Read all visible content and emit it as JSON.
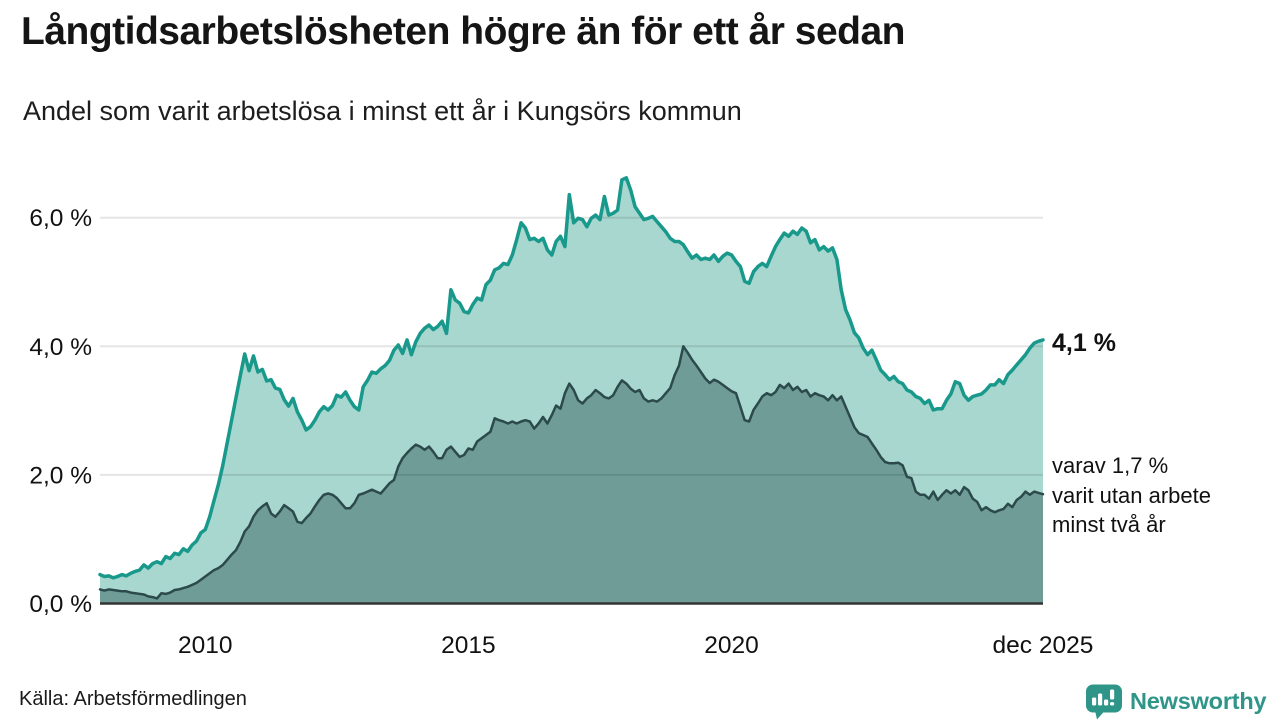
{
  "header": {
    "title": "Långtidsarbetslösheten högre än för ett år sedan",
    "subtitle": "Andel som varit arbetslösa i minst ett år i Kungsörs kommun"
  },
  "annotations": {
    "latest_value_label": "4,1 %",
    "note_lines": [
      "varav 1,7 %",
      "varit utan arbete",
      "minst två år"
    ]
  },
  "footer": {
    "source": "Källa: Arbetsförmedlingen",
    "brand": "Newsworthy"
  },
  "chart_data": {
    "type": "area",
    "title": "Långtidsarbetslösheten högre än för ett år sedan",
    "subtitle": "Andel som varit arbetslösa i minst ett år i Kungsörs kommun",
    "x": {
      "start_year": 2008,
      "frequency": "monthly",
      "end_label": "dec 2025"
    },
    "ylim": [
      0,
      6.9
    ],
    "grid": true,
    "y_ticks": [
      {
        "label": "0,0 %",
        "value": 0
      },
      {
        "label": "2,0 %",
        "value": 2
      },
      {
        "label": "4,0 %",
        "value": 4
      },
      {
        "label": "6,0 %",
        "value": 6
      }
    ],
    "x_ticks": [
      {
        "label": "2010",
        "year": 2010
      },
      {
        "label": "2015",
        "year": 2015
      },
      {
        "label": "2020",
        "year": 2020
      },
      {
        "label": "dec 2025",
        "year": 2025.9167
      }
    ],
    "colors": {
      "grid": "rgba(0,0,0,0.10)",
      "baseline": "#333333"
    },
    "series": [
      {
        "name": "arbetslosa-minst-ett-ar",
        "line_color": "#18998b",
        "fill_color": "#a8d7cf",
        "end_value": 4.1,
        "values": [
          0.45,
          0.42,
          0.43,
          0.4,
          0.42,
          0.45,
          0.43,
          0.47,
          0.5,
          0.52,
          0.6,
          0.55,
          0.62,
          0.65,
          0.62,
          0.73,
          0.7,
          0.78,
          0.76,
          0.85,
          0.81,
          0.91,
          0.97,
          1.1,
          1.15,
          1.35,
          1.6,
          1.85,
          2.15,
          2.5,
          2.85,
          3.2,
          3.55,
          3.88,
          3.62,
          3.85,
          3.6,
          3.64,
          3.46,
          3.48,
          3.35,
          3.33,
          3.17,
          3.07,
          3.19,
          2.98,
          2.85,
          2.7,
          2.75,
          2.85,
          2.98,
          3.06,
          3.01,
          3.08,
          3.24,
          3.21,
          3.29,
          3.16,
          3.06,
          3.01,
          3.37,
          3.47,
          3.6,
          3.58,
          3.65,
          3.7,
          3.78,
          3.94,
          4.02,
          3.89,
          4.1,
          3.87,
          4.07,
          4.2,
          4.28,
          4.33,
          4.26,
          4.31,
          4.39,
          4.2,
          4.88,
          4.72,
          4.67,
          4.54,
          4.52,
          4.65,
          4.75,
          4.72,
          4.96,
          5.03,
          5.19,
          5.22,
          5.29,
          5.27,
          5.42,
          5.66,
          5.92,
          5.84,
          5.66,
          5.68,
          5.63,
          5.68,
          5.5,
          5.42,
          5.63,
          5.71,
          5.55,
          6.36,
          5.92,
          5.99,
          5.97,
          5.86,
          5.99,
          6.04,
          5.97,
          6.33,
          6.04,
          6.07,
          6.12,
          6.59,
          6.62,
          6.43,
          6.17,
          6.07,
          5.97,
          5.99,
          6.02,
          5.94,
          5.86,
          5.78,
          5.68,
          5.63,
          5.63,
          5.58,
          5.47,
          5.37,
          5.42,
          5.35,
          5.37,
          5.35,
          5.42,
          5.32,
          5.4,
          5.45,
          5.42,
          5.32,
          5.24,
          5.01,
          4.98,
          5.16,
          5.24,
          5.29,
          5.24,
          5.4,
          5.55,
          5.66,
          5.76,
          5.71,
          5.79,
          5.74,
          5.84,
          5.79,
          5.61,
          5.66,
          5.5,
          5.55,
          5.48,
          5.53,
          5.35,
          4.88,
          4.57,
          4.41,
          4.21,
          4.13,
          3.97,
          3.87,
          3.94,
          3.79,
          3.63,
          3.56,
          3.48,
          3.53,
          3.45,
          3.42,
          3.32,
          3.29,
          3.22,
          3.19,
          3.11,
          3.16,
          3.01,
          3.03,
          3.03,
          3.16,
          3.26,
          3.45,
          3.42,
          3.24,
          3.16,
          3.22,
          3.24,
          3.26,
          3.32,
          3.4,
          3.4,
          3.48,
          3.42,
          3.56,
          3.63,
          3.71,
          3.79,
          3.87,
          3.97,
          4.05,
          4.08,
          4.1
        ]
      },
      {
        "name": "arbetslosa-minst-tva-ar",
        "line_color": "#2c4a4b",
        "fill_color": "#6f9c96",
        "end_value": 1.7,
        "values": [
          0.22,
          0.2,
          0.22,
          0.21,
          0.2,
          0.19,
          0.19,
          0.17,
          0.16,
          0.15,
          0.14,
          0.11,
          0.1,
          0.08,
          0.16,
          0.15,
          0.17,
          0.21,
          0.22,
          0.24,
          0.26,
          0.29,
          0.32,
          0.37,
          0.42,
          0.47,
          0.52,
          0.55,
          0.6,
          0.68,
          0.76,
          0.83,
          0.96,
          1.12,
          1.2,
          1.35,
          1.45,
          1.51,
          1.56,
          1.4,
          1.35,
          1.43,
          1.53,
          1.48,
          1.43,
          1.27,
          1.25,
          1.33,
          1.4,
          1.51,
          1.61,
          1.69,
          1.71,
          1.69,
          1.64,
          1.56,
          1.48,
          1.48,
          1.56,
          1.69,
          1.71,
          1.74,
          1.77,
          1.74,
          1.71,
          1.79,
          1.87,
          1.92,
          2.13,
          2.26,
          2.34,
          2.41,
          2.47,
          2.44,
          2.39,
          2.44,
          2.36,
          2.26,
          2.26,
          2.39,
          2.44,
          2.36,
          2.28,
          2.31,
          2.41,
          2.39,
          2.52,
          2.57,
          2.62,
          2.67,
          2.88,
          2.85,
          2.83,
          2.8,
          2.83,
          2.8,
          2.83,
          2.85,
          2.83,
          2.72,
          2.8,
          2.9,
          2.8,
          2.93,
          3.08,
          3.03,
          3.27,
          3.42,
          3.32,
          3.16,
          3.11,
          3.19,
          3.24,
          3.32,
          3.27,
          3.21,
          3.19,
          3.24,
          3.37,
          3.47,
          3.42,
          3.34,
          3.29,
          3.32,
          3.19,
          3.14,
          3.16,
          3.14,
          3.19,
          3.27,
          3.35,
          3.55,
          3.7,
          4.0,
          3.9,
          3.79,
          3.7,
          3.6,
          3.5,
          3.43,
          3.48,
          3.45,
          3.4,
          3.35,
          3.3,
          3.27,
          3.06,
          2.85,
          2.83,
          3.01,
          3.11,
          3.22,
          3.27,
          3.24,
          3.29,
          3.4,
          3.35,
          3.42,
          3.32,
          3.37,
          3.29,
          3.32,
          3.22,
          3.27,
          3.24,
          3.22,
          3.16,
          3.24,
          3.16,
          3.22,
          3.06,
          2.9,
          2.74,
          2.65,
          2.62,
          2.59,
          2.49,
          2.39,
          2.28,
          2.2,
          2.18,
          2.18,
          2.19,
          2.15,
          1.97,
          1.95,
          1.74,
          1.69,
          1.69,
          1.63,
          1.74,
          1.61,
          1.69,
          1.76,
          1.71,
          1.76,
          1.69,
          1.81,
          1.76,
          1.63,
          1.58,
          1.45,
          1.5,
          1.45,
          1.42,
          1.45,
          1.47,
          1.55,
          1.5,
          1.61,
          1.66,
          1.74,
          1.69,
          1.74,
          1.72,
          1.7
        ]
      }
    ]
  }
}
